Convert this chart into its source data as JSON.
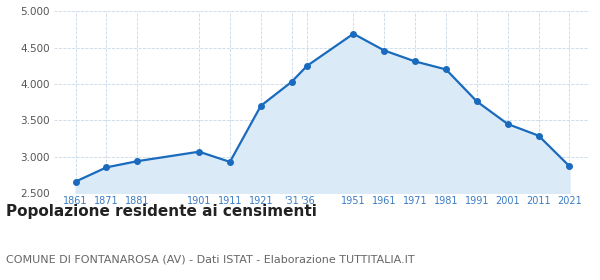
{
  "years": [
    1861,
    1871,
    1881,
    1901,
    1911,
    1921,
    1931,
    1936,
    1951,
    1961,
    1971,
    1981,
    1991,
    2001,
    2011,
    2021
  ],
  "population": [
    2660,
    2855,
    2940,
    3070,
    2930,
    3700,
    4030,
    4250,
    4690,
    4460,
    4310,
    4200,
    3760,
    3450,
    3290,
    2870
  ],
  "ylim": [
    2500,
    5000
  ],
  "yticks": [
    2500,
    3000,
    3500,
    4000,
    4500,
    5000
  ],
  "line_color": "#1a6bbd",
  "fill_color": "#daeaf7",
  "marker_size": 4,
  "grid_color": "#c8d8e8",
  "title": "Popolazione residente ai censimenti",
  "subtitle": "COMUNE DI FONTANAROSA (AV) - Dati ISTAT - Elaborazione TUTTITALIA.IT",
  "title_fontsize": 11,
  "subtitle_fontsize": 8,
  "bg_color": "#ffffff",
  "tick_color": "#3a7cc4",
  "xlim_left": 1854,
  "xlim_right": 2027
}
